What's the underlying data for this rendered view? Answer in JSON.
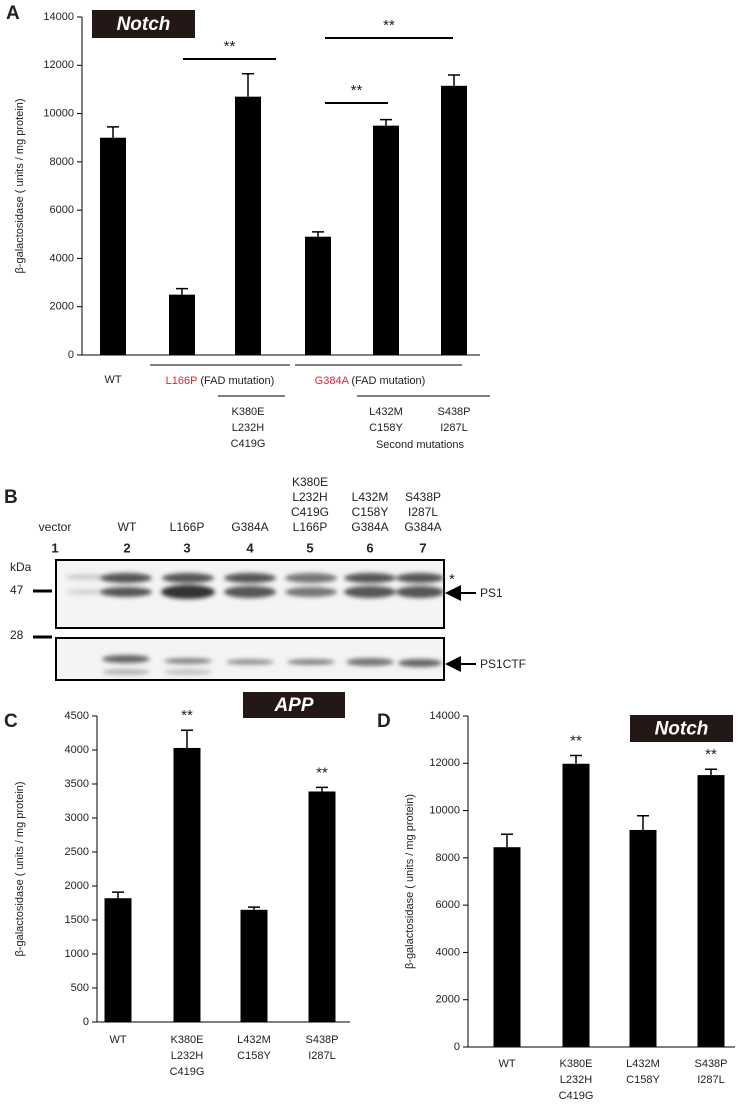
{
  "chart_data": [
    {
      "type": "bar",
      "panel": "A",
      "title": "Notch",
      "ylabel": "β-galactosidase ( units / mg protein)",
      "categories": [
        [
          "WT"
        ],
        null,
        [
          "K380E",
          "L232H",
          "C419G"
        ],
        null,
        [
          "L432M",
          "C158Y"
        ],
        [
          "S438P",
          "I287L"
        ]
      ],
      "values": [
        9000,
        2500,
        10700,
        4900,
        9500,
        11150
      ],
      "errors": [
        450,
        250,
        950,
        200,
        250,
        450
      ],
      "color": "#000000",
      "ylim": [
        0,
        14000
      ],
      "yticks": [
        0,
        2000,
        4000,
        6000,
        8000,
        10000,
        12000,
        14000
      ],
      "groups": [
        {
          "name": "L166P",
          "note": "(FAD mutation)"
        },
        {
          "name": "G384A",
          "note": "(FAD mutation)"
        }
      ],
      "group_color": "#e8242a",
      "footnote": "Second mutations",
      "comparisons": [
        "**",
        "**",
        "**"
      ]
    },
    {
      "type": "bar",
      "panel": "C",
      "title": "APP",
      "ylabel": "β-galactosidase ( units / mg protein)",
      "categories": [
        [
          "WT"
        ],
        [
          "K380E",
          "L232H",
          "C419G"
        ],
        [
          "L432M",
          "C158Y"
        ],
        [
          "S438P",
          "I287L"
        ]
      ],
      "values": [
        1820,
        4030,
        1650,
        3390
      ],
      "errors": [
        90,
        260,
        40,
        60
      ],
      "color": "#000000",
      "ylim": [
        0,
        4500
      ],
      "yticks": [
        0,
        500,
        1000,
        1500,
        2000,
        2500,
        3000,
        3500,
        4000,
        4500
      ],
      "significance": [
        null,
        "**",
        null,
        "**"
      ]
    },
    {
      "type": "bar",
      "panel": "D",
      "title": "Notch",
      "ylabel": "β-galactosidase ( units / mg protein)",
      "categories": [
        [
          "WT"
        ],
        [
          "K380E",
          "L232H",
          "C419G"
        ],
        [
          "L432M",
          "C158Y"
        ],
        [
          "S438P",
          "I287L"
        ]
      ],
      "values": [
        8450,
        11980,
        9180,
        11500
      ],
      "errors": [
        550,
        350,
        600,
        250
      ],
      "color": "#000000",
      "ylim": [
        0,
        14000
      ],
      "yticks": [
        0,
        2000,
        4000,
        6000,
        8000,
        10000,
        12000,
        14000
      ],
      "significance": [
        null,
        "**",
        null,
        "**"
      ]
    }
  ],
  "blot": {
    "panel": "B",
    "highlight_color": "#e8242a",
    "lanes": [
      {
        "labels": [
          "vector"
        ],
        "number": "1"
      },
      {
        "labels": [
          "WT"
        ],
        "number": "2"
      },
      {
        "labels": [
          {
            "text": "L166P",
            "highlight": true
          }
        ],
        "number": "3"
      },
      {
        "labels": [
          {
            "text": "G384A",
            "highlight": true
          }
        ],
        "number": "4"
      },
      {
        "labels": [
          "K380E",
          "L232H",
          "C419G",
          {
            "text": "L166P",
            "highlight": true
          }
        ],
        "number": "5"
      },
      {
        "labels": [
          "L432M",
          "C158Y",
          {
            "text": "G384A",
            "highlight": true
          }
        ],
        "number": "6"
      },
      {
        "labels": [
          "S438P",
          "I287L",
          {
            "text": "G384A",
            "highlight": true
          }
        ],
        "number": "7"
      }
    ],
    "marker_unit": "kDa",
    "markers": [
      47,
      28
    ],
    "band_mark": "*",
    "band_labels": [
      "PS1",
      "PS1CTF"
    ]
  }
}
